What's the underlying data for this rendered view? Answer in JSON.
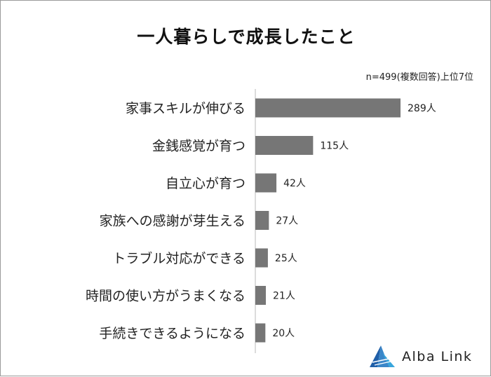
{
  "chart_data": {
    "type": "bar",
    "orientation": "horizontal",
    "title": "一人暮らしで成長したこと",
    "note": "n=499(複数回答)上位7位",
    "categories": [
      "家事スキルが伸びる",
      "金銭感覚が育つ",
      "自立心が育つ",
      "家族への感謝が芽生える",
      "トラブル対応ができる",
      "時間の使い方がうまくなる",
      "手続きできるようになる"
    ],
    "values": [
      289,
      115,
      42,
      27,
      25,
      21,
      20
    ],
    "value_labels": [
      "289人",
      "115人",
      "42人",
      "27人",
      "25人",
      "21人",
      "20人"
    ],
    "xlim": [
      0,
      289
    ],
    "grid": false,
    "bar_color": "#767676"
  },
  "brand": {
    "name": "Alba Link",
    "logo_icon": "alba-link-logo-icon",
    "colors": [
      "#1f5fa8",
      "#39a6dc"
    ]
  }
}
